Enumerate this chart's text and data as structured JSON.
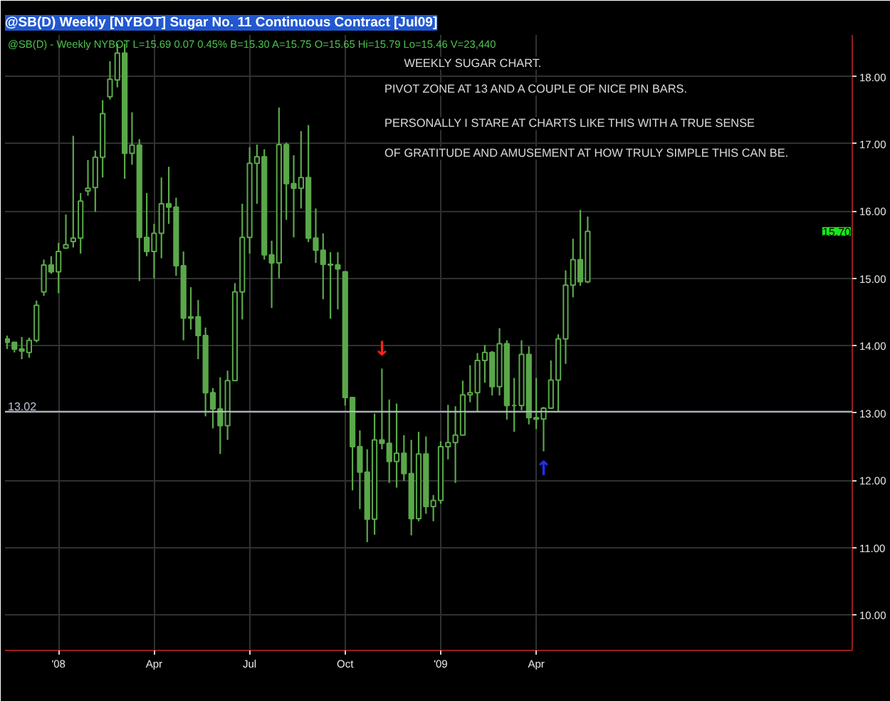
{
  "chart_data": {
    "type": "candlestick",
    "title": "@SB(D) Weekly [NYBOT] Sugar No. 11 Continuous Contract [Jul09]",
    "subtitle": "@SB(D) - Weekly NYBOT L=15.69 0.07 0.45% B=15.30 A=15.75 O=15.65 Hi=15.79 Lo=15.46 V=23,440",
    "annotations": [
      "WEEKLY SUGAR CHART.",
      "PIVOT ZONE AT 13 AND A COUPLE OF NICE PIN BARS.",
      "PERSONALLY I STARE AT CHARTS LIKE THIS WITH A TRUE SENSE",
      "OF GRATITUDE AND AMUSEMENT AT HOW TRULY SIMPLE THIS CAN BE.",
      "15.70",
      {
        "text": "↓",
        "x": "2008-11-07",
        "y": 13.66
      },
      {
        "text": "↑",
        "x": "2009-04-10",
        "y": 12.43
      }
    ],
    "x": [
      "2007-11-16",
      "2007-11-23",
      "2007-11-30",
      "2007-12-07",
      "2007-12-14",
      "2007-12-21",
      "2007-12-28",
      "2008-01-04",
      "2008-01-11",
      "2008-01-18",
      "2008-01-25",
      "2008-02-01",
      "2008-02-08",
      "2008-02-15",
      "2008-02-22",
      "2008-02-29",
      "2008-03-07",
      "2008-03-14",
      "2008-03-21",
      "2008-03-28",
      "2008-04-04",
      "2008-04-11",
      "2008-04-18",
      "2008-04-25",
      "2008-05-02",
      "2008-05-09",
      "2008-05-16",
      "2008-05-23",
      "2008-05-30",
      "2008-06-06",
      "2008-06-13",
      "2008-06-20",
      "2008-06-27",
      "2008-07-04",
      "2008-07-11",
      "2008-07-18",
      "2008-07-25",
      "2008-08-01",
      "2008-08-08",
      "2008-08-15",
      "2008-08-22",
      "2008-08-29",
      "2008-09-05",
      "2008-09-12",
      "2008-09-19",
      "2008-09-26",
      "2008-10-03",
      "2008-10-10",
      "2008-10-17",
      "2008-10-24",
      "2008-10-31",
      "2008-11-07",
      "2008-11-14",
      "2008-11-21",
      "2008-11-28",
      "2008-12-05",
      "2008-12-12",
      "2008-12-19",
      "2008-12-26",
      "2009-01-02",
      "2009-01-09",
      "2009-01-16",
      "2009-01-23",
      "2009-01-30",
      "2009-02-06",
      "2009-02-13",
      "2009-02-20",
      "2009-02-27",
      "2009-03-06",
      "2009-03-13",
      "2009-03-20",
      "2009-03-27",
      "2009-04-03",
      "2009-04-10",
      "2009-04-17",
      "2009-04-24",
      "2009-05-01",
      "2009-05-08",
      "2009-05-15",
      "2009-05-22"
    ],
    "ohlc": [
      [
        14.1,
        14.15,
        13.95,
        14.05
      ],
      [
        14.05,
        14.05,
        13.9,
        13.95
      ],
      [
        13.95,
        14.13,
        13.8,
        13.92
      ],
      [
        13.9,
        14.12,
        13.82,
        14.08
      ],
      [
        14.08,
        14.67,
        14.05,
        14.6
      ],
      [
        14.8,
        15.28,
        14.74,
        15.2
      ],
      [
        15.2,
        15.33,
        15.07,
        15.1
      ],
      [
        15.1,
        15.53,
        14.78,
        15.4
      ],
      [
        15.45,
        15.95,
        15.44,
        15.5
      ],
      [
        15.55,
        17.12,
        15.46,
        15.6
      ],
      [
        15.6,
        16.27,
        15.37,
        16.15
      ],
      [
        16.3,
        16.76,
        16.23,
        16.34
      ],
      [
        16.35,
        16.9,
        15.99,
        16.8
      ],
      [
        16.8,
        17.65,
        16.5,
        17.45
      ],
      [
        17.7,
        18.23,
        17.66,
        17.96
      ],
      [
        17.95,
        18.49,
        17.84,
        18.35
      ],
      [
        18.35,
        18.49,
        16.48,
        16.86
      ],
      [
        16.86,
        17.47,
        16.69,
        16.98
      ],
      [
        16.98,
        17.07,
        14.96,
        15.61
      ],
      [
        15.61,
        16.27,
        15.33,
        15.4
      ],
      [
        15.4,
        15.81,
        15.0,
        15.67
      ],
      [
        15.67,
        16.5,
        15.3,
        16.11
      ],
      [
        16.11,
        16.66,
        15.81,
        16.06
      ],
      [
        16.06,
        16.2,
        15.04,
        15.19
      ],
      [
        15.19,
        15.4,
        14.08,
        14.41
      ],
      [
        14.41,
        14.87,
        14.24,
        14.43
      ],
      [
        14.43,
        14.68,
        13.8,
        14.15
      ],
      [
        14.15,
        14.27,
        12.95,
        13.3
      ],
      [
        13.3,
        13.37,
        12.77,
        13.06
      ],
      [
        13.06,
        13.53,
        12.39,
        12.81
      ],
      [
        12.81,
        13.63,
        12.6,
        13.48
      ],
      [
        13.48,
        14.93,
        13.48,
        14.8
      ],
      [
        14.8,
        16.11,
        14.39,
        15.61
      ],
      [
        15.61,
        16.95,
        15.37,
        16.71
      ],
      [
        16.71,
        16.99,
        16.11,
        16.81
      ],
      [
        16.81,
        16.92,
        15.28,
        15.35
      ],
      [
        15.35,
        15.56,
        14.56,
        15.23
      ],
      [
        15.23,
        17.54,
        15.0,
        16.99
      ],
      [
        16.99,
        17.02,
        15.87,
        16.41
      ],
      [
        16.41,
        16.83,
        15.61,
        16.34
      ],
      [
        16.34,
        17.19,
        16.04,
        16.5
      ],
      [
        16.5,
        17.28,
        15.54,
        15.6
      ],
      [
        15.6,
        16.04,
        15.23,
        15.42
      ],
      [
        15.42,
        15.67,
        14.69,
        15.21
      ],
      [
        15.21,
        15.39,
        14.4,
        15.2
      ],
      [
        15.2,
        15.39,
        14.54,
        15.14
      ],
      [
        15.1,
        15.1,
        13.11,
        13.23
      ],
      [
        13.23,
        13.23,
        11.85,
        12.5
      ],
      [
        12.5,
        12.74,
        11.57,
        12.12
      ],
      [
        12.12,
        12.46,
        11.08,
        11.42
      ],
      [
        11.42,
        12.99,
        11.19,
        12.6
      ],
      [
        12.6,
        13.66,
        12.46,
        12.55
      ],
      [
        12.55,
        13.2,
        11.96,
        12.28
      ],
      [
        12.28,
        13.14,
        11.89,
        12.4
      ],
      [
        12.4,
        12.67,
        11.99,
        12.1
      ],
      [
        12.1,
        12.6,
        11.18,
        11.43
      ],
      [
        11.43,
        12.72,
        11.39,
        12.39
      ],
      [
        12.39,
        12.65,
        11.5,
        11.61
      ],
      [
        11.61,
        11.78,
        11.39,
        11.7
      ],
      [
        11.7,
        12.58,
        11.65,
        12.5
      ],
      [
        12.5,
        13.12,
        12.31,
        12.56
      ],
      [
        12.56,
        13.1,
        11.96,
        12.67
      ],
      [
        12.67,
        13.48,
        12.67,
        13.27
      ],
      [
        13.27,
        13.71,
        13.16,
        13.3
      ],
      [
        13.3,
        13.89,
        13.02,
        13.78
      ],
      [
        13.78,
        14.01,
        13.45,
        13.9
      ],
      [
        13.9,
        13.92,
        13.26,
        13.39
      ],
      [
        13.39,
        14.26,
        13.26,
        14.03
      ],
      [
        14.03,
        14.08,
        12.9,
        13.11
      ],
      [
        13.11,
        13.52,
        12.72,
        13.11
      ],
      [
        13.11,
        14.08,
        13.04,
        13.87
      ],
      [
        13.87,
        13.99,
        12.83,
        12.93
      ],
      [
        12.93,
        13.52,
        12.76,
        12.91
      ],
      [
        12.91,
        13.09,
        12.43,
        13.07
      ],
      [
        13.07,
        13.78,
        13.06,
        13.49
      ],
      [
        13.49,
        14.17,
        13.02,
        14.1
      ],
      [
        14.1,
        15.12,
        13.73,
        14.9
      ],
      [
        14.9,
        15.59,
        14.72,
        15.28
      ],
      [
        15.28,
        16.02,
        14.89,
        14.95
      ],
      [
        14.95,
        15.92,
        14.93,
        15.7
      ]
    ],
    "color": "#5aa84a",
    "xlim": [
      "2007-11-14",
      "2010-01-29"
    ],
    "ylim": [
      9.47,
      18.62
    ],
    "xticks": [
      {
        "value": "2008-01-04",
        "label": "'08"
      },
      {
        "value": "2008-04-04",
        "label": "Apr"
      },
      {
        "value": "2008-07-04",
        "label": "Jul"
      },
      {
        "value": "2008-10-03",
        "label": "Oct"
      },
      {
        "value": "2009-01-02",
        "label": "'09"
      },
      {
        "value": "2009-04-03",
        "label": "Apr"
      }
    ],
    "yticks": [
      {
        "value": 10,
        "label": "10.00"
      },
      {
        "value": 11,
        "label": "11.00"
      },
      {
        "value": 12,
        "label": "12.00"
      },
      {
        "value": 13,
        "label": "13.00"
      },
      {
        "value": 14,
        "label": "14.00"
      },
      {
        "value": 15,
        "label": "15.00"
      },
      {
        "value": 16,
        "label": "16.00"
      },
      {
        "value": 17,
        "label": "17.00"
      },
      {
        "value": 18,
        "label": "18.00"
      }
    ],
    "grid": true,
    "ref_lines": [
      {
        "axis": "y",
        "value": 13.02,
        "label": "13.02",
        "color": "#b8c0d0"
      }
    ]
  }
}
